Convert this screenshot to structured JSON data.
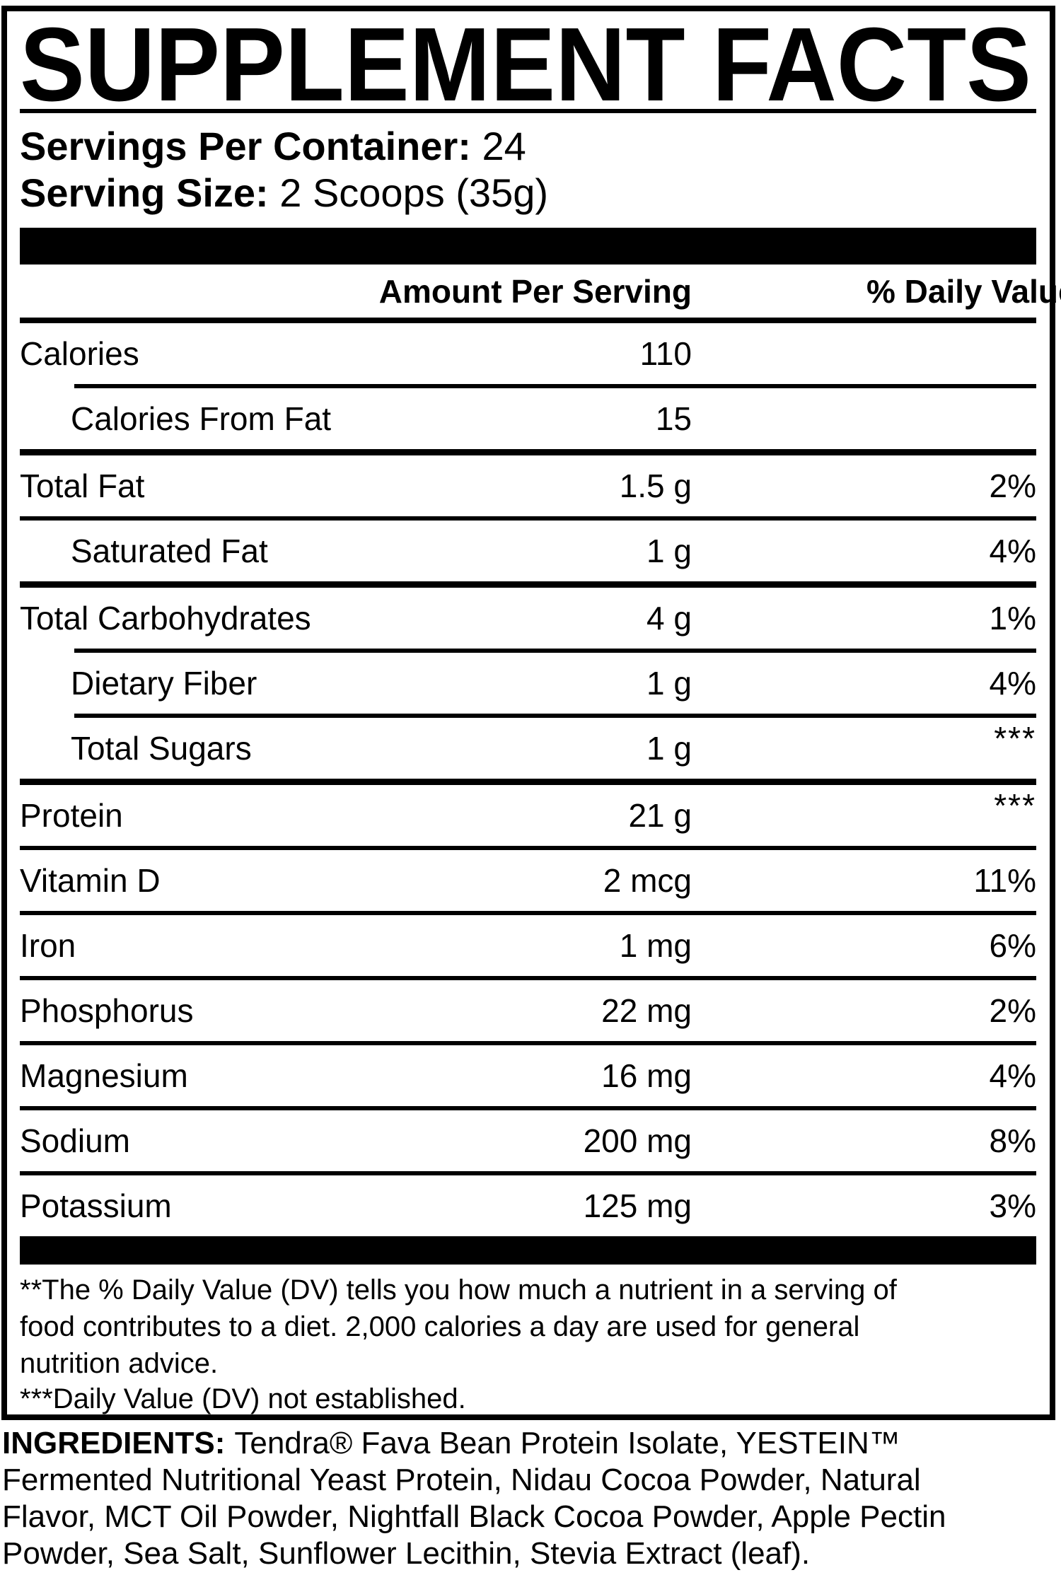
{
  "title": "SUPPLEMENT FACTS",
  "serving_info": {
    "servings_per_container_label": "Servings Per Container:",
    "servings_per_container_value": "24",
    "serving_size_label": "Serving Size:",
    "serving_size_value": "2 Scoops (35g)"
  },
  "table": {
    "headers": {
      "amount": "Amount Per Serving",
      "daily_value": "% Daily Value**"
    },
    "rows": [
      {
        "name": "Calories",
        "amount": "110",
        "dv": "",
        "indent": false,
        "sep": "none"
      },
      {
        "name": "Calories From Fat",
        "amount": "15",
        "dv": "",
        "indent": true,
        "sep": "indent"
      },
      {
        "name": "Total Fat",
        "amount": "1.5 g",
        "dv": "2%",
        "indent": false,
        "sep": "full-thick"
      },
      {
        "name": "Saturated Fat",
        "amount": "1 g",
        "dv": "4%",
        "indent": true,
        "sep": "full"
      },
      {
        "name": "Total Carbohydrates",
        "amount": "4 g",
        "dv": "1%",
        "indent": false,
        "sep": "full-thick"
      },
      {
        "name": "Dietary Fiber",
        "amount": "1 g",
        "dv": "4%",
        "indent": true,
        "sep": "indent"
      },
      {
        "name": "Total Sugars",
        "amount": "1 g",
        "dv": "***",
        "indent": true,
        "sep": "indent"
      },
      {
        "name": "Protein",
        "amount": "21 g",
        "dv": "***",
        "indent": false,
        "sep": "full-thick"
      },
      {
        "name": "Vitamin D",
        "amount": "2 mcg",
        "dv": "11%",
        "indent": false,
        "sep": "full"
      },
      {
        "name": "Iron",
        "amount": "1 mg",
        "dv": "6%",
        "indent": false,
        "sep": "full"
      },
      {
        "name": "Phosphorus",
        "amount": "22 mg",
        "dv": "2%",
        "indent": false,
        "sep": "full"
      },
      {
        "name": "Magnesium",
        "amount": "16 mg",
        "dv": "4%",
        "indent": false,
        "sep": "full"
      },
      {
        "name": "Sodium",
        "amount": "200 mg",
        "dv": "8%",
        "indent": false,
        "sep": "full"
      },
      {
        "name": "Potassium",
        "amount": "125 mg",
        "dv": "3%",
        "indent": false,
        "sep": "full"
      }
    ]
  },
  "footnote": {
    "lines": [
      "**The % Daily Value (DV) tells you how much a nutrient in a serving of",
      "food contributes to a diet. 2,000 calories a day are used for general",
      "nutrition advice."
    ],
    "dv_note": "***Daily Value (DV) not established."
  },
  "ingredients": {
    "label": "INGREDIENTS:",
    "line1_rest": "Tendra® Fava Bean Protein Isolate, YESTEIN™",
    "lines": [
      "Fermented Nutritional Yeast Protein, Nidau Cocoa Powder, Natural",
      "Flavor, MCT Oil Powder, Nightfall Black Cocoa Powder, Apple Pectin",
      "Powder, Sea Salt, Sunflower Lecithin, Stevia Extract (leaf)."
    ]
  },
  "colors": {
    "ink": "#000000",
    "background": "#ffffff"
  }
}
